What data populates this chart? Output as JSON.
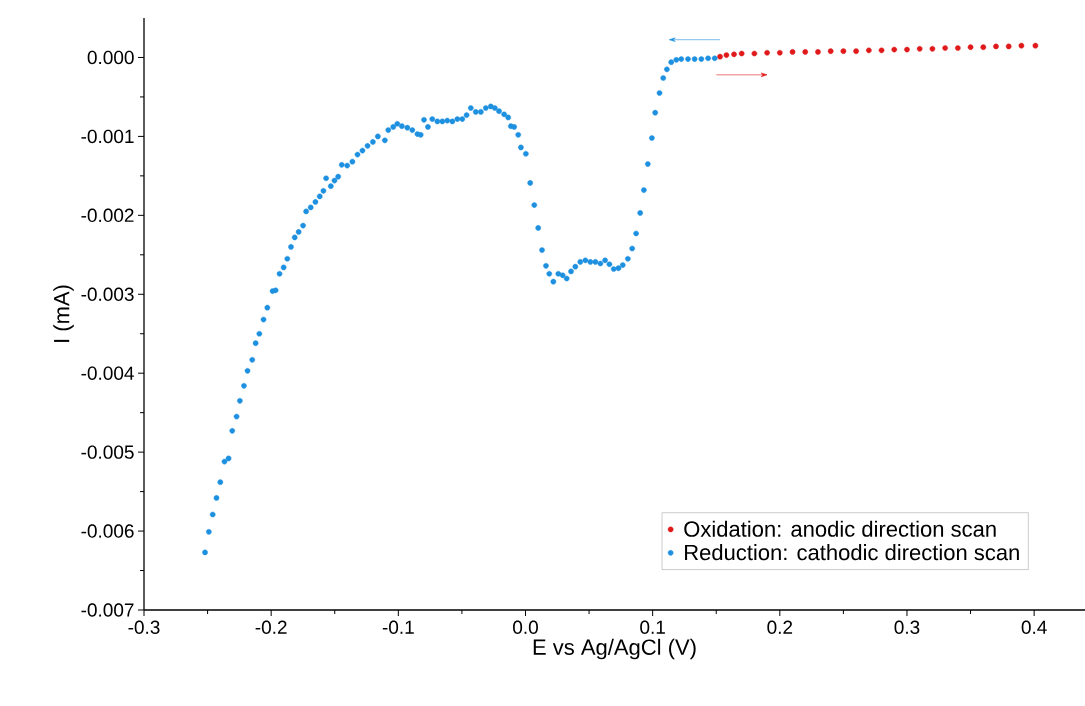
{
  "chart_data": {
    "type": "scatter",
    "xlabel": "E vs Ag/AgCl (V)",
    "ylabel": "I (mA)",
    "xlim": [
      -0.3,
      0.44
    ],
    "ylim": [
      -0.007,
      0.0005
    ],
    "xticks": [
      -0.3,
      -0.2,
      -0.1,
      {
        "value": 0,
        "label": "0.0"
      },
      0.1,
      0.2,
      0.3,
      0.4
    ],
    "yticks": [
      {
        "value": 0,
        "label": "0.000"
      },
      -0.001,
      -0.002,
      -0.003,
      -0.004,
      -0.005,
      -0.006,
      -0.007
    ],
    "marker": "circle",
    "legend": "bottom right",
    "grid": false,
    "series": [
      {
        "name": "Oxidation: anodic direction scan",
        "color": "#e0191b",
        "x": [
          0.153,
          0.158,
          0.164,
          0.17,
          0.18,
          0.19,
          0.2,
          0.21,
          0.22,
          0.23,
          0.24,
          0.25,
          0.26,
          0.27,
          0.28,
          0.29,
          0.3,
          0.31,
          0.32,
          0.33,
          0.34,
          0.35,
          0.36,
          0.37,
          0.38,
          0.39,
          0.401
        ],
        "values": [
          1e-05,
          3e-05,
          4e-05,
          5e-05,
          5e-05,
          6e-05,
          6e-05,
          7e-05,
          7e-05,
          7e-05,
          8e-05,
          8e-05,
          8e-05,
          9e-05,
          9e-05,
          0.0001,
          0.0001,
          0.00011,
          0.00011,
          0.00012,
          0.00012,
          0.00013,
          0.00013,
          0.00014,
          0.00014,
          0.00015,
          0.00015
        ]
      },
      {
        "name": "Reduction: cathodic direction scan",
        "color": "#1e90e0",
        "x": [
          -0.252,
          -0.249,
          -0.246,
          -0.243,
          -0.24,
          -0.2367,
          -0.2335,
          -0.2306,
          -0.2272,
          -0.2246,
          -0.2214,
          -0.2186,
          -0.2149,
          -0.2122,
          -0.2093,
          -0.206,
          -0.203,
          -0.1989,
          -0.1965,
          -0.1934,
          -0.1902,
          -0.1873,
          -0.1844,
          -0.1815,
          -0.1784,
          -0.1749,
          -0.1725,
          -0.1689,
          -0.1652,
          -0.1618,
          -0.1589,
          -0.1568,
          -0.1531,
          -0.1502,
          -0.1473,
          -0.1445,
          -0.1402,
          -0.1361,
          -0.1321,
          -0.1282,
          -0.1242,
          -0.12,
          -0.1161,
          -0.1106,
          -0.1079,
          -0.104,
          -0.1008,
          -0.0972,
          -0.0929,
          -0.089,
          -0.085,
          -0.0824,
          -0.0798,
          -0.0767,
          -0.0733,
          -0.0693,
          -0.0654,
          -0.0615,
          -0.0575,
          -0.0536,
          -0.0497,
          -0.0463,
          -0.043,
          -0.0391,
          -0.0351,
          -0.0312,
          -0.0273,
          -0.0241,
          -0.0208,
          -0.0168,
          -0.0136,
          -0.0115,
          -0.0089,
          -0.0057,
          -0.0036,
          0.0003,
          0.0037,
          0.0069,
          0.01,
          0.013,
          0.0161,
          0.0187,
          0.0219,
          0.0258,
          0.0292,
          0.0324,
          0.0358,
          0.0392,
          0.0431,
          0.0471,
          0.051,
          0.055,
          0.0589,
          0.0626,
          0.066,
          0.0694,
          0.0731,
          0.0765,
          0.0805,
          0.0839,
          0.087,
          0.0902,
          0.0931,
          0.0962,
          0.0994,
          0.102,
          0.1054,
          0.1083,
          0.1112,
          0.1146,
          0.1186,
          0.1225,
          0.1278,
          0.133,
          0.1383,
          0.1436,
          0.1488
        ],
        "values": [
          -0.00627,
          -0.00601,
          -0.00579,
          -0.00558,
          -0.00538,
          -0.00512,
          -0.00508,
          -0.00473,
          -0.00455,
          -0.00435,
          -0.00416,
          -0.00397,
          -0.00383,
          -0.00362,
          -0.0035,
          -0.00332,
          -0.00317,
          -0.00296,
          -0.00295,
          -0.00274,
          -0.00266,
          -0.00255,
          -0.0024,
          -0.00228,
          -0.00221,
          -0.00213,
          -0.00195,
          -0.0019,
          -0.00183,
          -0.00176,
          -0.00169,
          -0.00153,
          -0.00163,
          -0.00156,
          -0.00151,
          -0.00136,
          -0.00137,
          -0.00132,
          -0.00123,
          -0.00118,
          -0.00112,
          -0.00107,
          -0.001,
          -0.00105,
          -0.00092,
          -0.00088,
          -0.00084,
          -0.00087,
          -0.00089,
          -0.00092,
          -0.00097,
          -0.00098,
          -0.00079,
          -0.00088,
          -0.00078,
          -0.00081,
          -0.00081,
          -0.0008,
          -0.00081,
          -0.00078,
          -0.00078,
          -0.00073,
          -0.00064,
          -0.00069,
          -0.00069,
          -0.00064,
          -0.00062,
          -0.00064,
          -0.00068,
          -0.00072,
          -0.00076,
          -0.00087,
          -0.00088,
          -0.00098,
          -0.00114,
          -0.00122,
          -0.00159,
          -0.00187,
          -0.00216,
          -0.00244,
          -0.00264,
          -0.00274,
          -0.00284,
          -0.00274,
          -0.00276,
          -0.0028,
          -0.00271,
          -0.00265,
          -0.00259,
          -0.00257,
          -0.00259,
          -0.00259,
          -0.00261,
          -0.00257,
          -0.00262,
          -0.00268,
          -0.00267,
          -0.00263,
          -0.00255,
          -0.00242,
          -0.00223,
          -0.00197,
          -0.00168,
          -0.00135,
          -0.00102,
          -0.0007,
          -0.00045,
          -0.00026,
          -0.00015,
          -6e-05,
          -3e-05,
          -2e-05,
          -2e-05,
          -2e-05,
          -2e-05,
          -1e-05,
          -1e-05
        ]
      }
    ]
  }
}
